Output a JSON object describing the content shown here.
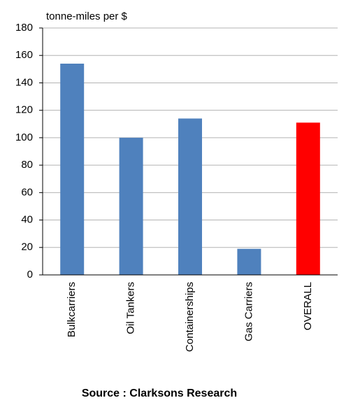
{
  "chart_data": {
    "type": "bar",
    "y_label": "tonne-miles per $",
    "source": "Source : Clarksons Research",
    "categories": [
      "Bulkcarriers",
      "Oil Tankers",
      "Containerships",
      "Gas Carriers",
      "OVERALL"
    ],
    "values": [
      154,
      100,
      114,
      19,
      111
    ],
    "colors": [
      "#4f81bd",
      "#4f81bd",
      "#4f81bd",
      "#4f81bd",
      "#ff0000"
    ],
    "ylim": [
      0,
      180
    ],
    "yticks": [
      0,
      20,
      40,
      60,
      80,
      100,
      120,
      140,
      160,
      180
    ],
    "grid": true
  }
}
